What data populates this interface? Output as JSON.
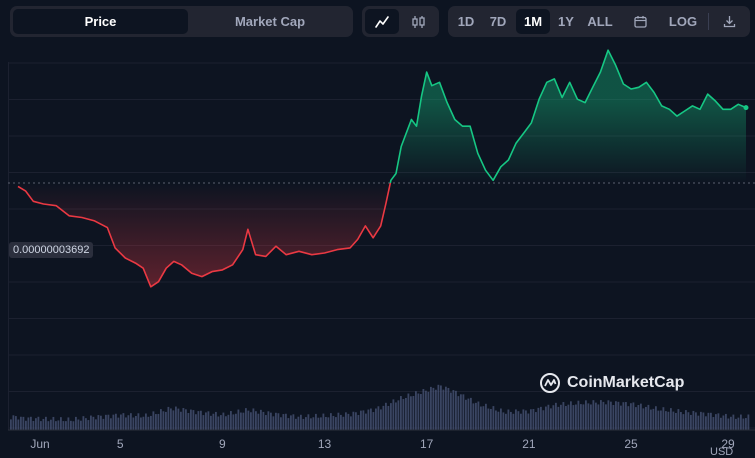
{
  "tabs": {
    "price": "Price",
    "market_cap": "Market Cap"
  },
  "chart_types": {
    "line": "line-chart-icon",
    "candle": "candlestick-icon"
  },
  "ranges": [
    "1D",
    "7D",
    "1M",
    "1Y",
    "ALL"
  ],
  "active_range": "1M",
  "tools": {
    "calendar": "calendar-icon",
    "log": "LOG",
    "download": "download-icon"
  },
  "watermark": "CoinMarketCap",
  "currency": "USD",
  "colors": {
    "up": "#16c784",
    "down": "#ea3943",
    "background": "#0d1421"
  },
  "chart_data": {
    "type": "line",
    "baseline_label": "0.00000003692",
    "x_ticks": [
      "Jun",
      "5",
      "9",
      "13",
      "17",
      "21",
      "25",
      "29"
    ],
    "x_tick_days": [
      1,
      5,
      9,
      13,
      17,
      21,
      25,
      29
    ],
    "x_domain": [
      1.0,
      29.5
    ],
    "y_domain": [
      3.05e-08,
      4.05e-08
    ],
    "baseline": 3.692e-08,
    "grid": true,
    "series": [
      {
        "values": [
          [
            1.0,
            3.682e-08
          ],
          [
            1.3,
            3.668e-08
          ],
          [
            1.6,
            3.638e-08
          ],
          [
            2.0,
            3.63e-08
          ],
          [
            2.5,
            3.625e-08
          ],
          [
            3.0,
            3.595e-08
          ],
          [
            3.5,
            3.59e-08
          ],
          [
            4.0,
            3.58e-08
          ],
          [
            4.5,
            3.56e-08
          ],
          [
            4.8,
            3.5e-08
          ],
          [
            5.2,
            3.47e-08
          ],
          [
            5.6,
            3.455e-08
          ],
          [
            5.9,
            3.44e-08
          ],
          [
            6.2,
            3.385e-08
          ],
          [
            6.5,
            3.4e-08
          ],
          [
            6.8,
            3.44e-08
          ],
          [
            7.1,
            3.46e-08
          ],
          [
            7.4,
            3.45e-08
          ],
          [
            7.8,
            3.425e-08
          ],
          [
            8.2,
            3.415e-08
          ],
          [
            8.6,
            3.43e-08
          ],
          [
            9.0,
            3.435e-08
          ],
          [
            9.4,
            3.45e-08
          ],
          [
            9.8,
            3.495e-08
          ],
          [
            10.0,
            3.555e-08
          ],
          [
            10.3,
            3.48e-08
          ],
          [
            10.7,
            3.475e-08
          ],
          [
            11.1,
            3.505e-08
          ],
          [
            11.5,
            3.48e-08
          ],
          [
            12.0,
            3.49e-08
          ],
          [
            12.5,
            3.48e-08
          ],
          [
            13.0,
            3.485e-08
          ],
          [
            13.5,
            3.495e-08
          ],
          [
            14.0,
            3.5e-08
          ],
          [
            14.3,
            3.525e-08
          ],
          [
            14.6,
            3.565e-08
          ],
          [
            14.9,
            3.53e-08
          ],
          [
            15.2,
            3.565e-08
          ],
          [
            15.4,
            3.63e-08
          ],
          [
            15.6,
            3.7e-08
          ],
          [
            15.8,
            3.72e-08
          ],
          [
            16.0,
            3.8e-08
          ],
          [
            16.2,
            3.84e-08
          ],
          [
            16.4,
            3.88e-08
          ],
          [
            16.6,
            3.86e-08
          ],
          [
            16.8,
            3.95e-08
          ],
          [
            17.0,
            4.02e-08
          ],
          [
            17.2,
            3.98e-08
          ],
          [
            17.5,
            3.99e-08
          ],
          [
            17.8,
            3.93e-08
          ],
          [
            18.1,
            3.88e-08
          ],
          [
            18.4,
            3.86e-08
          ],
          [
            18.7,
            3.86e-08
          ],
          [
            19.0,
            3.78e-08
          ],
          [
            19.3,
            3.73e-08
          ],
          [
            19.6,
            3.7e-08
          ],
          [
            19.9,
            3.74e-08
          ],
          [
            20.2,
            3.76e-08
          ],
          [
            20.5,
            3.81e-08
          ],
          [
            20.8,
            3.84e-08
          ],
          [
            21.1,
            3.87e-08
          ],
          [
            21.4,
            3.94e-08
          ],
          [
            21.7,
            3.99e-08
          ],
          [
            22.0,
            4e-08
          ],
          [
            22.3,
            3.945e-08
          ],
          [
            22.6,
            3.99e-08
          ],
          [
            22.9,
            3.94e-08
          ],
          [
            23.2,
            3.93e-08
          ],
          [
            23.5,
            3.975e-08
          ],
          [
            23.8,
            4.02e-08
          ],
          [
            24.1,
            4.085e-08
          ],
          [
            24.4,
            4.04e-08
          ],
          [
            24.7,
            3.985e-08
          ],
          [
            25.0,
            3.97e-08
          ],
          [
            25.3,
            3.975e-08
          ],
          [
            25.6,
            3.99e-08
          ],
          [
            25.9,
            3.96e-08
          ],
          [
            26.2,
            3.92e-08
          ],
          [
            26.5,
            3.91e-08
          ],
          [
            26.8,
            3.89e-08
          ],
          [
            27.1,
            3.905e-08
          ],
          [
            27.4,
            3.92e-08
          ],
          [
            27.7,
            3.91e-08
          ],
          [
            28.0,
            3.955e-08
          ],
          [
            28.3,
            3.935e-08
          ],
          [
            28.6,
            3.91e-08
          ],
          [
            28.9,
            3.91e-08
          ],
          [
            29.2,
            3.925e-08
          ],
          [
            29.5,
            3.915e-08
          ]
        ]
      }
    ],
    "volume": {
      "x_domain": [
        1.0,
        29.5
      ],
      "values": [
        [
          1.0,
          12
        ],
        [
          2.0,
          11
        ],
        [
          3.0,
          10
        ],
        [
          4.0,
          13
        ],
        [
          5.0,
          15
        ],
        [
          6.0,
          14
        ],
        [
          7.0,
          22
        ],
        [
          8.0,
          18
        ],
        [
          9.0,
          15
        ],
        [
          10.0,
          20
        ],
        [
          11.0,
          16
        ],
        [
          12.0,
          13
        ],
        [
          13.0,
          14
        ],
        [
          14.0,
          16
        ],
        [
          15.0,
          21
        ],
        [
          16.0,
          32
        ],
        [
          17.0,
          40
        ],
        [
          17.5,
          44
        ],
        [
          18.0,
          39
        ],
        [
          19.0,
          26
        ],
        [
          20.0,
          18
        ],
        [
          21.0,
          19
        ],
        [
          22.0,
          25
        ],
        [
          23.0,
          27
        ],
        [
          24.0,
          28
        ],
        [
          25.0,
          26
        ],
        [
          26.0,
          21
        ],
        [
          27.0,
          18
        ],
        [
          28.0,
          16
        ],
        [
          29.0,
          13
        ]
      ]
    }
  }
}
